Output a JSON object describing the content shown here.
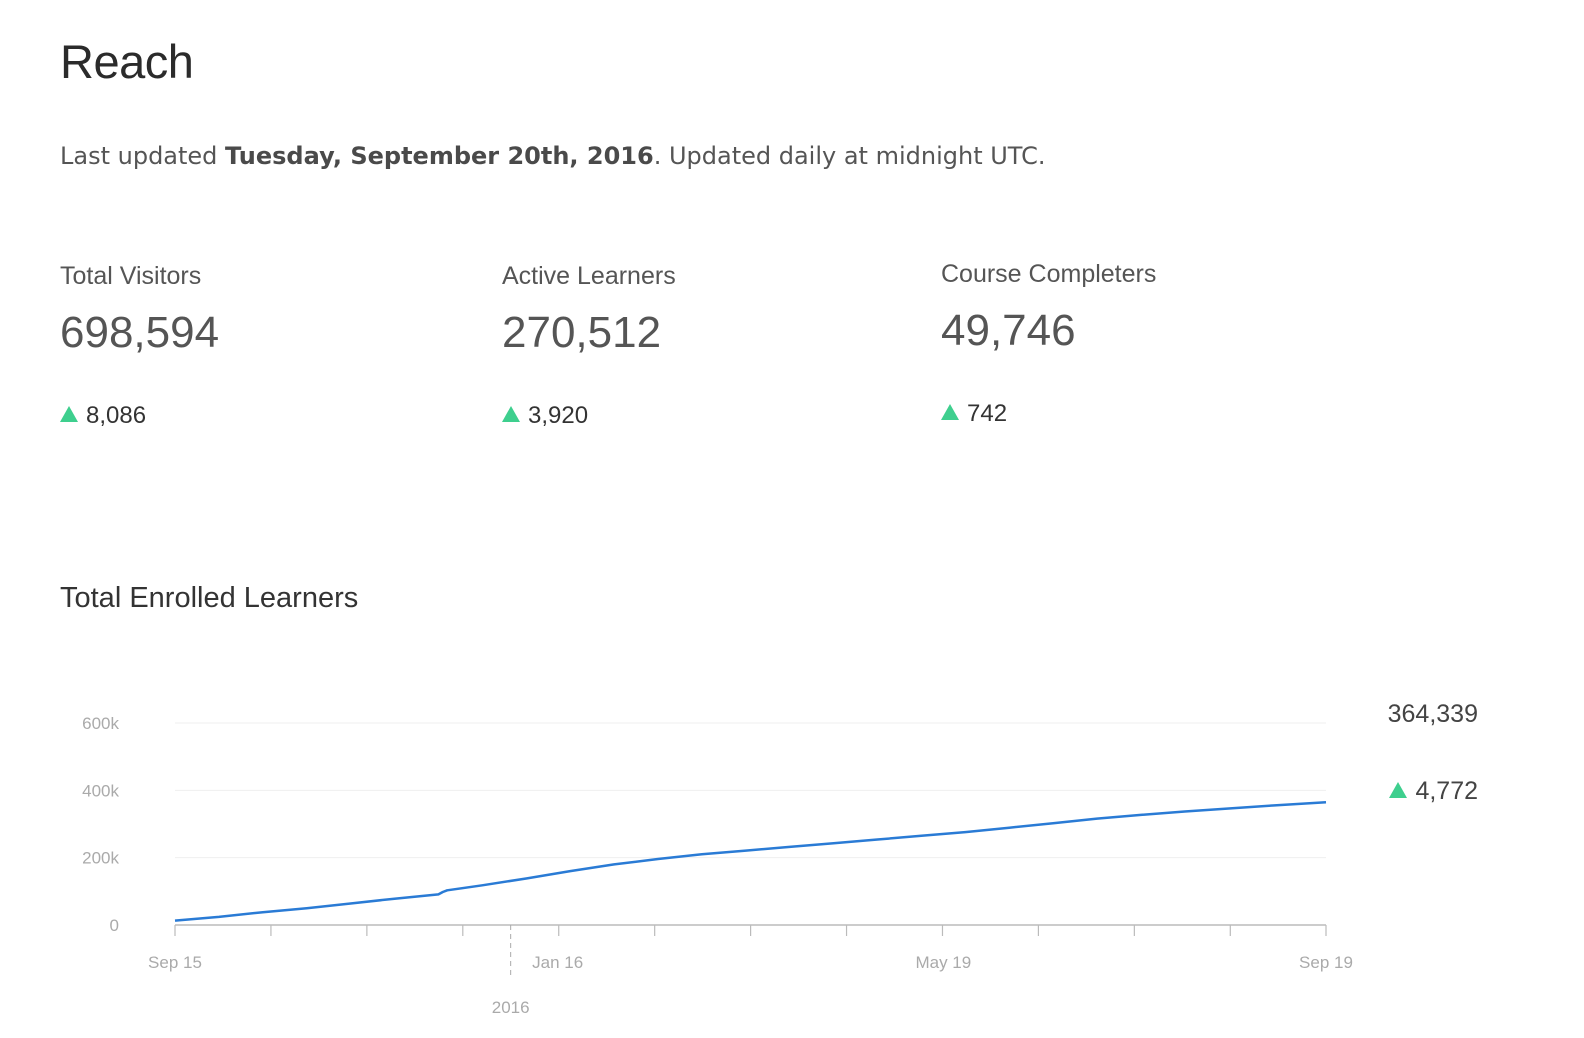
{
  "page": {
    "title": "Reach",
    "updated_prefix": "Last updated ",
    "updated_date": "Tuesday, September 20th, 2016",
    "updated_suffix": ". Updated daily at midnight UTC."
  },
  "metrics": [
    {
      "label": "Total Visitors",
      "value": "698,594",
      "change": "8,086"
    },
    {
      "label": "Active Learners",
      "value": "270,512",
      "change": "3,920"
    },
    {
      "label": "Course Completers",
      "value": "49,746",
      "change": "742"
    }
  ],
  "enrolled_section": {
    "title": "Total Enrolled Learners",
    "total": "364,339",
    "change": "4,772"
  },
  "colors": {
    "up_arrow": "#3ecf8e",
    "line": "#2a7bd5"
  },
  "chart_data": {
    "type": "line",
    "title": "Total Enrolled Learners",
    "xlabel": "",
    "ylabel": "",
    "ylim": [
      0,
      600000
    ],
    "y_ticks": [
      {
        "value": 0,
        "label": "0"
      },
      {
        "value": 200000,
        "label": "200k"
      },
      {
        "value": 400000,
        "label": "400k"
      },
      {
        "value": 600000,
        "label": "600k"
      }
    ],
    "x_range_weeks": [
      0,
      52.43
    ],
    "x_labels": [
      {
        "week": 0,
        "label": "Sep 15"
      },
      {
        "week": 17.43,
        "label": "Jan 16"
      },
      {
        "week": 35,
        "label": "May 19"
      },
      {
        "week": 52.43,
        "label": "Sep 19"
      }
    ],
    "year_marker": {
      "week": 15.29,
      "label": "2016"
    },
    "x_minor_ticks_weeks": [
      0,
      4.37,
      8.74,
      13.11,
      17.48,
      21.85,
      26.22,
      30.59,
      34.96,
      39.33,
      43.7,
      48.07,
      52.43
    ],
    "series": [
      {
        "name": "Total Enrolled Learners",
        "points": [
          [
            0,
            13000
          ],
          [
            2,
            24000
          ],
          [
            4,
            38000
          ],
          [
            6,
            50000
          ],
          [
            8,
            64000
          ],
          [
            10,
            78000
          ],
          [
            12,
            91000
          ],
          [
            12.2,
            98000
          ],
          [
            12.4,
            103000
          ],
          [
            14,
            118000
          ],
          [
            16,
            138000
          ],
          [
            18,
            160000
          ],
          [
            20,
            180000
          ],
          [
            22,
            196000
          ],
          [
            24,
            210000
          ],
          [
            26,
            221000
          ],
          [
            28,
            232000
          ],
          [
            30,
            243000
          ],
          [
            32,
            254000
          ],
          [
            34,
            265000
          ],
          [
            36,
            276000
          ],
          [
            38,
            289000
          ],
          [
            40,
            302000
          ],
          [
            42,
            316000
          ],
          [
            44,
            327000
          ],
          [
            46,
            337000
          ],
          [
            48,
            346000
          ],
          [
            50,
            355000
          ],
          [
            52.43,
            364339
          ]
        ]
      }
    ]
  }
}
